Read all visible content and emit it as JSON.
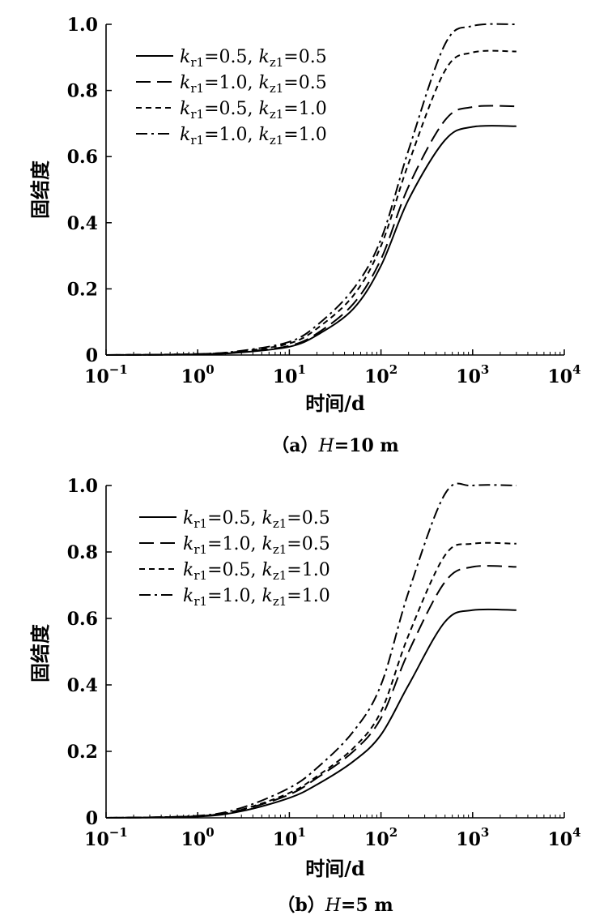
{
  "charts": [
    {
      "caption": {
        "prefix": "（a）",
        "var": "H",
        "rest": "=10 m"
      },
      "xlabel": "时间/d",
      "ylabel": "固结度",
      "chart_data": {
        "type": "line",
        "x_scale": "log",
        "xlim": [
          0.1,
          10000
        ],
        "ylim": [
          0,
          1.0
        ],
        "x_ticks": [
          0.1,
          1,
          10,
          100,
          1000,
          10000
        ],
        "x_tick_labels": [
          {
            "base": "10",
            "exp": "−1"
          },
          {
            "base": "10",
            "exp": "0"
          },
          {
            "base": "10",
            "exp": "1"
          },
          {
            "base": "10",
            "exp": "2"
          },
          {
            "base": "10",
            "exp": "3"
          },
          {
            "base": "10",
            "exp": "4"
          }
        ],
        "y_ticks": [
          0,
          0.2,
          0.4,
          0.6,
          0.8,
          1.0
        ],
        "y_tick_labels": [
          "0",
          "0.2",
          "0.4",
          "0.6",
          "0.8",
          "1.0"
        ],
        "grid": false,
        "legend_position": "top-left",
        "x": [
          0.1,
          1,
          3,
          10,
          20,
          50,
          100,
          200,
          500,
          1000,
          3000
        ],
        "series": [
          {
            "name": {
              "a": "r1",
              "av": "=0.5, ",
              "b": "z1",
              "bv": "=0.5"
            },
            "dash": "solid",
            "values": [
              0.0,
              0.002,
              0.008,
              0.025,
              0.06,
              0.14,
              0.27,
              0.47,
              0.65,
              0.69,
              0.692
            ]
          },
          {
            "name": {
              "a": "r1",
              "av": "=1.0, ",
              "b": "z1",
              "bv": "=0.5"
            },
            "dash": "long-dash",
            "values": [
              0.0,
              0.002,
              0.009,
              0.028,
              0.065,
              0.155,
              0.29,
              0.51,
              0.71,
              0.75,
              0.752
            ]
          },
          {
            "name": {
              "a": "r1",
              "av": "=0.5, ",
              "b": "z1",
              "bv": "=1.0"
            },
            "dash": "short-dash",
            "values": [
              0.0,
              0.003,
              0.011,
              0.035,
              0.08,
              0.18,
              0.33,
              0.58,
              0.86,
              0.915,
              0.918
            ]
          },
          {
            "name": {
              "a": "r1",
              "av": "=1.0, ",
              "b": "z1",
              "bv": "=1.0"
            },
            "dash": "dash-dot",
            "values": [
              0.0,
              0.003,
              0.013,
              0.04,
              0.09,
              0.2,
              0.35,
              0.62,
              0.94,
              0.995,
              1.0
            ]
          }
        ]
      }
    },
    {
      "caption": {
        "prefix": "（b）",
        "var": "H",
        "rest": "=5 m"
      },
      "xlabel": "时间/d",
      "ylabel": "固结度",
      "chart_data": {
        "type": "line",
        "x_scale": "log",
        "xlim": [
          0.1,
          10000
        ],
        "ylim": [
          0,
          1.0
        ],
        "x_ticks": [
          0.1,
          1,
          10,
          100,
          1000,
          10000
        ],
        "x_tick_labels": [
          {
            "base": "10",
            "exp": "−1"
          },
          {
            "base": "10",
            "exp": "0"
          },
          {
            "base": "10",
            "exp": "1"
          },
          {
            "base": "10",
            "exp": "2"
          },
          {
            "base": "10",
            "exp": "3"
          },
          {
            "base": "10",
            "exp": "4"
          }
        ],
        "y_ticks": [
          0,
          0.2,
          0.4,
          0.6,
          0.8,
          1.0
        ],
        "y_tick_labels": [
          "0",
          "0.2",
          "0.4",
          "0.6",
          "0.8",
          "1.0"
        ],
        "grid": false,
        "legend_position": "top-left",
        "x": [
          0.1,
          1,
          3,
          10,
          20,
          50,
          100,
          200,
          500,
          1000,
          3000
        ],
        "series": [
          {
            "name": {
              "a": "r1",
              "av": "=0.5, ",
              "b": "z1",
              "bv": "=0.5"
            },
            "dash": "solid",
            "values": [
              0.0,
              0.004,
              0.02,
              0.06,
              0.1,
              0.17,
              0.25,
              0.4,
              0.59,
              0.625,
              0.625
            ]
          },
          {
            "name": {
              "a": "r1",
              "av": "=1.0, ",
              "b": "z1",
              "bv": "=0.5"
            },
            "dash": "long-dash",
            "values": [
              0.0,
              0.005,
              0.024,
              0.07,
              0.12,
              0.2,
              0.3,
              0.5,
              0.71,
              0.755,
              0.755
            ]
          },
          {
            "name": {
              "a": "r1",
              "av": "=0.5, ",
              "b": "z1",
              "bv": "=1.0"
            },
            "dash": "short-dash",
            "values": [
              0.0,
              0.005,
              0.025,
              0.075,
              0.125,
              0.21,
              0.32,
              0.55,
              0.79,
              0.825,
              0.825
            ]
          },
          {
            "name": {
              "a": "r1",
              "av": "=1.0, ",
              "b": "z1",
              "bv": "=1.0"
            },
            "dash": "dash-dot",
            "values": [
              0.0,
              0.006,
              0.03,
              0.09,
              0.15,
              0.26,
              0.4,
              0.68,
              0.975,
              1.0,
              1.0
            ]
          }
        ]
      }
    }
  ]
}
